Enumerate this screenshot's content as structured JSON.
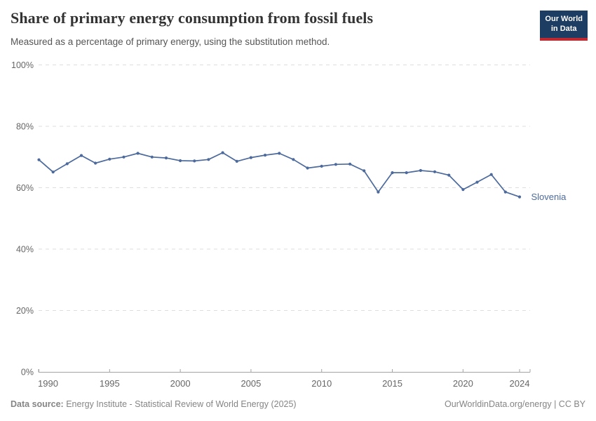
{
  "header": {
    "title": "Share of primary energy consumption from fossil fuels",
    "subtitle": "Measured as a percentage of primary energy, using the substitution method.",
    "logo": {
      "line1": "Our World",
      "line2": "in Data"
    }
  },
  "colors": {
    "line": "#4c6a9c",
    "entity_label": "#4c6a9c",
    "gridline": "#dedede",
    "axis": "#a3a3a3",
    "tick_label": "#666666",
    "logo_bg": "#1d3d63",
    "logo_red": "#c0292f"
  },
  "chart_data": {
    "type": "line",
    "title": "Share of primary energy consumption from fossil fuels",
    "subtitle": "Measured as a percentage of primary energy, using the substitution method.",
    "x": [
      1990,
      1991,
      1992,
      1993,
      1994,
      1995,
      1996,
      1997,
      1998,
      1999,
      2000,
      2001,
      2002,
      2003,
      2004,
      2005,
      2006,
      2007,
      2008,
      2009,
      2010,
      2011,
      2012,
      2013,
      2014,
      2015,
      2016,
      2017,
      2018,
      2019,
      2020,
      2021,
      2022,
      2023,
      2024
    ],
    "series": [
      {
        "name": "Slovenia",
        "values": [
          69.1,
          65.1,
          67.8,
          70.5,
          68.0,
          69.3,
          70.0,
          71.2,
          70.0,
          69.7,
          68.8,
          68.7,
          69.2,
          71.4,
          68.6,
          69.8,
          70.6,
          71.2,
          69.2,
          66.4,
          67.0,
          67.6,
          67.7,
          65.5,
          58.6,
          64.9,
          64.9,
          65.6,
          65.2,
          64.1,
          59.4,
          61.8,
          64.3,
          58.6,
          57.0
        ]
      }
    ],
    "xlabel": "",
    "ylabel": "",
    "ylim": [
      0,
      100
    ],
    "yticks": [
      0,
      20,
      40,
      60,
      80,
      100
    ],
    "ytick_suffix": "%",
    "xticks": [
      1990,
      1995,
      2000,
      2005,
      2010,
      2015,
      2020,
      2024
    ],
    "grid": "horizontal-dashed",
    "legend_position": "end-of-line-label"
  },
  "footer": {
    "datasource_label": "Data source:",
    "datasource_text": " Energy Institute - Statistical Review of World Energy (2025)",
    "credit": "OurWorldinData.org/energy | CC BY"
  }
}
